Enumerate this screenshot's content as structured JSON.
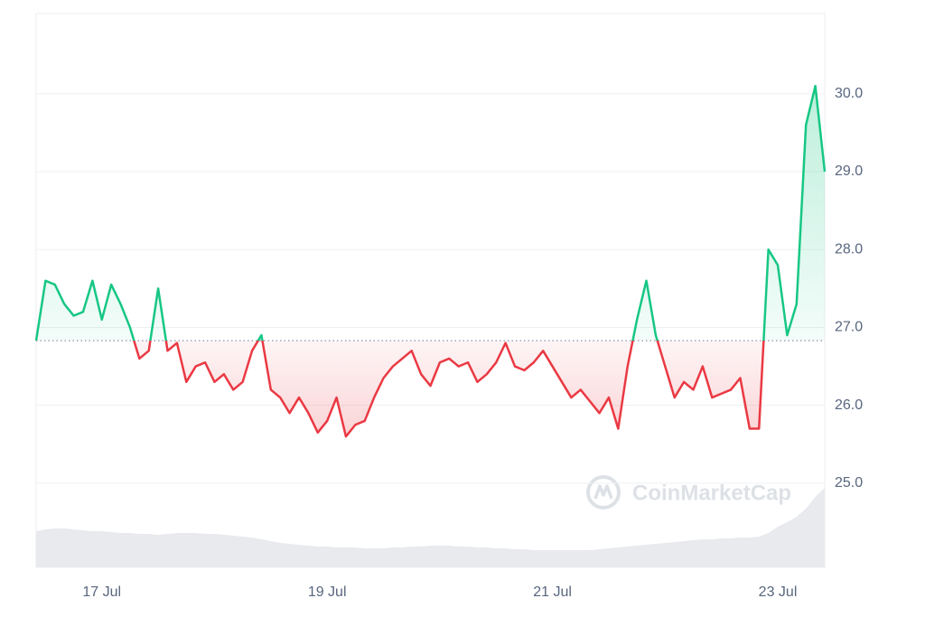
{
  "chart_data": {
    "type": "line",
    "categories": [
      null,
      null,
      null,
      null,
      null,
      null,
      null,
      "17 Jul",
      null,
      null,
      null,
      null,
      null,
      null,
      null,
      null,
      null,
      null,
      null,
      null,
      null,
      null,
      null,
      null,
      null,
      null,
      null,
      null,
      null,
      null,
      null,
      "19 Jul",
      null,
      null,
      null,
      null,
      null,
      null,
      null,
      null,
      null,
      null,
      null,
      null,
      null,
      null,
      null,
      null,
      null,
      null,
      null,
      null,
      null,
      null,
      null,
      "21 Jul",
      null,
      null,
      null,
      null,
      null,
      null,
      null,
      null,
      null,
      null,
      null,
      null,
      null,
      null,
      null,
      null,
      null,
      null,
      null,
      null,
      null,
      null,
      null,
      "23 Jul",
      null,
      null,
      null,
      null,
      null
    ],
    "values": [
      26.83,
      27.6,
      27.55,
      27.3,
      27.15,
      27.2,
      27.6,
      27.1,
      27.55,
      27.3,
      27.0,
      26.6,
      26.7,
      27.5,
      26.7,
      26.8,
      26.3,
      26.5,
      26.55,
      26.3,
      26.4,
      26.2,
      26.3,
      26.7,
      26.9,
      26.2,
      26.1,
      25.9,
      26.1,
      25.9,
      25.65,
      25.8,
      26.1,
      25.6,
      25.75,
      25.8,
      26.1,
      26.35,
      26.5,
      26.6,
      26.7,
      26.4,
      26.25,
      26.55,
      26.6,
      26.5,
      26.55,
      26.3,
      26.4,
      26.55,
      26.8,
      26.5,
      26.45,
      26.55,
      26.7,
      26.5,
      26.3,
      26.1,
      26.2,
      26.05,
      25.9,
      26.1,
      25.7,
      26.5,
      27.1,
      27.6,
      26.9,
      26.5,
      26.1,
      26.3,
      26.2,
      26.5,
      26.1,
      26.15,
      26.2,
      26.35,
      25.7,
      25.7,
      28.0,
      27.8,
      26.9,
      27.3,
      29.6,
      30.1,
      29.0
    ],
    "baseline": 26.83,
    "color_up": "#16c784",
    "color_down": "#ea3943",
    "volume": {
      "color": "#e8eaee",
      "values": [
        40,
        42,
        43,
        43,
        42,
        41,
        40,
        40,
        39,
        38,
        38,
        37,
        37,
        36,
        37,
        38,
        38,
        38,
        37,
        37,
        36,
        35,
        34,
        33,
        31,
        29,
        27,
        26,
        25,
        24,
        23,
        23,
        22,
        22,
        22,
        21,
        21,
        21,
        22,
        22,
        23,
        23,
        24,
        24,
        24,
        23,
        23,
        22,
        22,
        21,
        21,
        20,
        20,
        19,
        19,
        19,
        19,
        19,
        19,
        19,
        20,
        21,
        22,
        23,
        24,
        25,
        26,
        27,
        28,
        29,
        30,
        31,
        31,
        32,
        32,
        33,
        33,
        34,
        38,
        45,
        50,
        56,
        65,
        78,
        88
      ]
    },
    "ylim": [
      23.92,
      31.03
    ],
    "yticks": [
      {
        "value": 25,
        "label": "25.0"
      },
      {
        "value": 26,
        "label": "26.0"
      },
      {
        "value": 27,
        "label": "27.0"
      },
      {
        "value": 28,
        "label": "28.0"
      },
      {
        "value": 29,
        "label": "29.0"
      },
      {
        "value": 30,
        "label": "30.0"
      }
    ],
    "grid": true,
    "watermark": "CoinMarketCap"
  }
}
